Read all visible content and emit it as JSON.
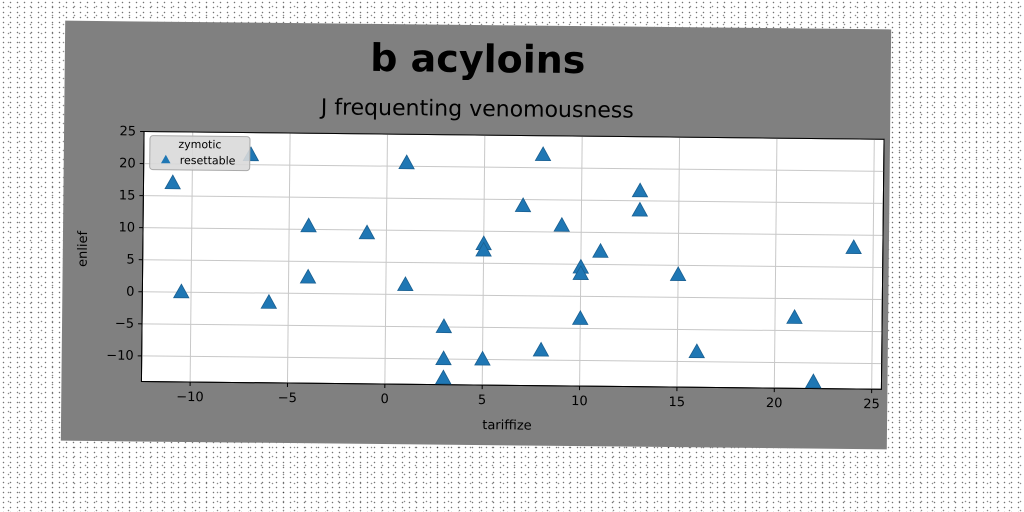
{
  "chart_data": {
    "type": "scatter",
    "title": "b acyloins",
    "subtitle": "J frequenting venomousness",
    "xlabel": "tariffize",
    "ylabel": "enlief",
    "xlim": [
      -12.5,
      25.5
    ],
    "ylim": [
      -14,
      25
    ],
    "xticks": [
      -10,
      -5,
      0,
      5,
      10,
      15,
      20,
      25
    ],
    "yticks": [
      -10,
      -5,
      0,
      5,
      10,
      15,
      20,
      25
    ],
    "grid": true,
    "legend": {
      "placement": "top-left",
      "title": "zymotic",
      "entries": [
        "resettable"
      ]
    },
    "series": [
      {
        "name": "resettable",
        "marker": "triangle",
        "color": "#1f77b4",
        "points": [
          [
            -11,
            17
          ],
          [
            -10.5,
            0
          ],
          [
            -7,
            21.5
          ],
          [
            -6,
            -1.5
          ],
          [
            -4,
            10.5
          ],
          [
            -4,
            2.5
          ],
          [
            -1,
            9.5
          ],
          [
            1,
            20.5
          ],
          [
            1,
            1.5
          ],
          [
            3,
            -5
          ],
          [
            3,
            -10
          ],
          [
            3,
            -13
          ],
          [
            5,
            8
          ],
          [
            5,
            7
          ],
          [
            5,
            -10
          ],
          [
            7,
            14
          ],
          [
            8,
            22
          ],
          [
            8,
            -8.5
          ],
          [
            9,
            11
          ],
          [
            10,
            4.5
          ],
          [
            10,
            3.5
          ],
          [
            10,
            -3.5
          ],
          [
            11,
            7
          ],
          [
            13,
            16.5
          ],
          [
            13,
            13.5
          ],
          [
            15,
            3.5
          ],
          [
            16,
            -8.5
          ],
          [
            21,
            -3
          ],
          [
            22,
            -13
          ],
          [
            24,
            8
          ]
        ]
      }
    ]
  }
}
